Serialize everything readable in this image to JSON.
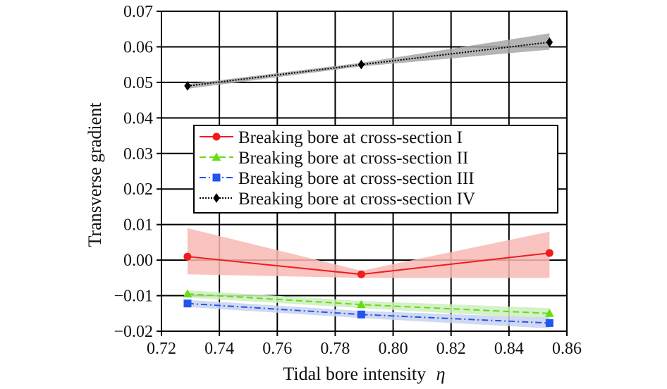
{
  "chart_data": {
    "type": "line",
    "title": "",
    "xlabel": "Tidal bore intensity",
    "xlabel_symbol": "η",
    "ylabel": "Transverse gradient",
    "xlim": [
      0.72,
      0.86
    ],
    "ylim": [
      -0.02,
      0.07
    ],
    "x_ticks": [
      "0.72",
      "0.74",
      "0.76",
      "0.78",
      "0.80",
      "0.82",
      "0.84",
      "0.86"
    ],
    "y_ticks": [
      "0.07",
      "0.06",
      "0.05",
      "0.04",
      "0.03",
      "0.02",
      "0.01",
      "0.00",
      "−0.01",
      "−0.02"
    ],
    "grid": true,
    "legend_position": "middle-right",
    "x": [
      0.729,
      0.789,
      0.854
    ],
    "series": [
      {
        "name": "Breaking bore at cross-section I",
        "values": [
          0.001,
          -0.004,
          0.002
        ],
        "band_upper": [
          0.009,
          -0.003,
          0.008
        ],
        "band_lower": [
          -0.004,
          -0.005,
          -0.005
        ],
        "color": "#ee1c1c",
        "band_color": "#f8b8b4",
        "marker": "circle",
        "dash": "solid"
      },
      {
        "name": "Breaking bore at cross-section II",
        "values": [
          -0.0095,
          -0.0125,
          -0.015
        ],
        "band_upper": [
          -0.0085,
          -0.0115,
          -0.0135
        ],
        "band_lower": [
          -0.0105,
          -0.0135,
          -0.0165
        ],
        "color": "#66dd11",
        "band_color": "#cdeec0",
        "marker": "triangle",
        "dash": "dashed"
      },
      {
        "name": "Breaking bore at cross-section III",
        "values": [
          -0.0122,
          -0.0153,
          -0.0177
        ],
        "band_upper": [
          -0.0112,
          -0.0143,
          -0.0162
        ],
        "band_lower": [
          -0.0132,
          -0.0163,
          -0.0192
        ],
        "color": "#2255ee",
        "band_color": "#c8d2ee",
        "marker": "square",
        "dash": "dashdot"
      },
      {
        "name": "Breaking bore at cross-section IV",
        "values": [
          0.049,
          0.055,
          0.0613
        ],
        "band_upper": [
          0.0495,
          0.0555,
          0.0638
        ],
        "band_lower": [
          0.0482,
          0.0545,
          0.0592
        ],
        "color": "#000000",
        "band_color": "#a7a7a7",
        "marker": "diamond",
        "dash": "dotted"
      }
    ]
  }
}
